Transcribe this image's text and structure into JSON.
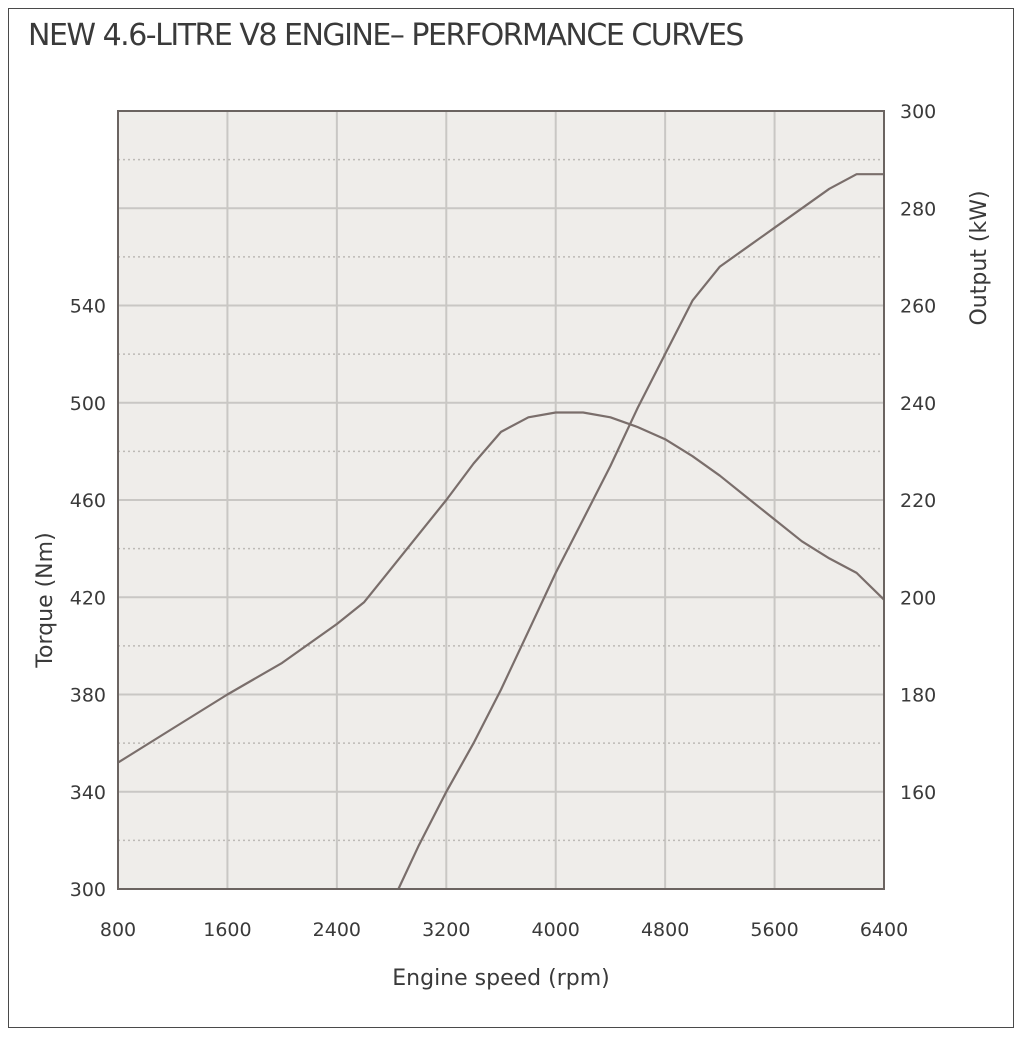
{
  "chart_data": {
    "type": "line",
    "title": "NEW 4.6-LITRE V8 ENGINE– PERFORMANCE CURVES",
    "xlabel": "Engine speed (rpm)",
    "ylabel_left": "Torque (Nm)",
    "ylabel_right": "Output (kW)",
    "xlim": [
      800,
      6400
    ],
    "ylim_left": [
      300,
      620
    ],
    "ylim_right": [
      140,
      300
    ],
    "x_ticks": [
      "800",
      "1600",
      "2400",
      "3200",
      "4000",
      "4800",
      "5600",
      "6400"
    ],
    "y_left_ticks": [
      "300",
      "340",
      "380",
      "420",
      "460",
      "500",
      "540"
    ],
    "y_right_ticks": [
      "160",
      "180",
      "200",
      "220",
      "240",
      "260",
      "280",
      "300"
    ],
    "grid": true,
    "colors": {
      "plot_background": "#efedea",
      "grid": "#c9c7c4",
      "line": "#7a6e6b",
      "text": "#3a3a3a"
    },
    "series": [
      {
        "axis": "left",
        "x": [
          800,
          1200,
          1600,
          2000,
          2400,
          2600,
          2800,
          3000,
          3200,
          3400,
          3600,
          3800,
          4000,
          4200,
          4400,
          4600,
          4800,
          5000,
          5200,
          5400,
          5600,
          5800,
          6000,
          6200,
          6400
        ],
        "values": [
          352,
          366,
          380,
          393,
          409,
          418,
          432,
          446,
          460,
          475,
          488,
          494,
          496,
          496,
          494,
          490,
          485,
          478,
          470,
          461,
          452,
          443,
          436,
          430,
          419
        ]
      },
      {
        "axis": "right",
        "x": [
          2850,
          3000,
          3200,
          3400,
          3600,
          3800,
          4000,
          4200,
          4400,
          4600,
          4800,
          5000,
          5200,
          5400,
          5600,
          5800,
          6000,
          6200,
          6400
        ],
        "values": [
          140,
          149,
          160,
          170,
          181,
          193,
          205,
          216,
          227,
          239,
          250,
          261,
          268,
          272,
          276,
          280,
          284,
          287,
          287
        ]
      }
    ]
  }
}
